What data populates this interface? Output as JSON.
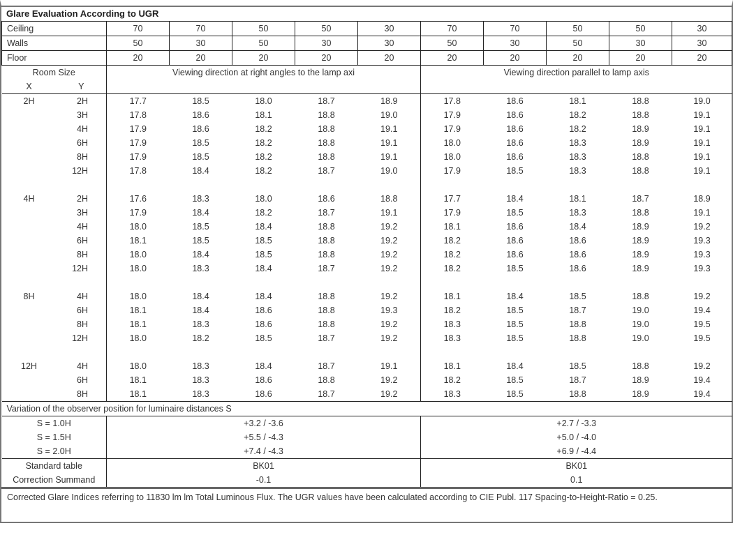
{
  "title": "Glare Evaluation According to UGR",
  "reflectances": [
    {
      "label": "Ceiling",
      "values": [
        "70",
        "70",
        "50",
        "50",
        "30",
        "70",
        "70",
        "50",
        "50",
        "30"
      ]
    },
    {
      "label": "Walls",
      "values": [
        "50",
        "30",
        "50",
        "30",
        "30",
        "50",
        "30",
        "50",
        "30",
        "30"
      ]
    },
    {
      "label": "Floor",
      "values": [
        "20",
        "20",
        "20",
        "20",
        "20",
        "20",
        "20",
        "20",
        "20",
        "20"
      ]
    }
  ],
  "header": {
    "room_size": "Room Size",
    "x": "X",
    "y": "Y",
    "perpendicular": "Viewing direction at right angles to the lamp axi",
    "parallel": "Viewing direction parallel to lamp axis"
  },
  "groups": [
    {
      "x": "2H",
      "rows": [
        {
          "y": "2H",
          "values": [
            "17.7",
            "18.5",
            "18.0",
            "18.7",
            "18.9",
            "17.8",
            "18.6",
            "18.1",
            "18.8",
            "19.0"
          ]
        },
        {
          "y": "3H",
          "values": [
            "17.8",
            "18.6",
            "18.1",
            "18.8",
            "19.0",
            "17.9",
            "18.6",
            "18.2",
            "18.8",
            "19.1"
          ]
        },
        {
          "y": "4H",
          "values": [
            "17.9",
            "18.6",
            "18.2",
            "18.8",
            "19.1",
            "17.9",
            "18.6",
            "18.2",
            "18.9",
            "19.1"
          ]
        },
        {
          "y": "6H",
          "values": [
            "17.9",
            "18.5",
            "18.2",
            "18.8",
            "19.1",
            "18.0",
            "18.6",
            "18.3",
            "18.9",
            "19.1"
          ]
        },
        {
          "y": "8H",
          "values": [
            "17.9",
            "18.5",
            "18.2",
            "18.8",
            "19.1",
            "18.0",
            "18.6",
            "18.3",
            "18.8",
            "19.1"
          ]
        },
        {
          "y": "12H",
          "values": [
            "17.8",
            "18.4",
            "18.2",
            "18.7",
            "19.0",
            "17.9",
            "18.5",
            "18.3",
            "18.8",
            "19.1"
          ]
        }
      ]
    },
    {
      "x": "4H",
      "rows": [
        {
          "y": "2H",
          "values": [
            "17.6",
            "18.3",
            "18.0",
            "18.6",
            "18.8",
            "17.7",
            "18.4",
            "18.1",
            "18.7",
            "18.9"
          ]
        },
        {
          "y": "3H",
          "values": [
            "17.9",
            "18.4",
            "18.2",
            "18.7",
            "19.1",
            "17.9",
            "18.5",
            "18.3",
            "18.8",
            "19.1"
          ]
        },
        {
          "y": "4H",
          "values": [
            "18.0",
            "18.5",
            "18.4",
            "18.8",
            "19.2",
            "18.1",
            "18.6",
            "18.4",
            "18.9",
            "19.2"
          ]
        },
        {
          "y": "6H",
          "values": [
            "18.1",
            "18.5",
            "18.5",
            "18.8",
            "19.2",
            "18.2",
            "18.6",
            "18.6",
            "18.9",
            "19.3"
          ]
        },
        {
          "y": "8H",
          "values": [
            "18.0",
            "18.4",
            "18.5",
            "18.8",
            "19.2",
            "18.2",
            "18.6",
            "18.6",
            "18.9",
            "19.3"
          ]
        },
        {
          "y": "12H",
          "values": [
            "18.0",
            "18.3",
            "18.4",
            "18.7",
            "19.2",
            "18.2",
            "18.5",
            "18.6",
            "18.9",
            "19.3"
          ]
        }
      ]
    },
    {
      "x": "8H",
      "rows": [
        {
          "y": "4H",
          "values": [
            "18.0",
            "18.4",
            "18.4",
            "18.8",
            "19.2",
            "18.1",
            "18.4",
            "18.5",
            "18.8",
            "19.2"
          ]
        },
        {
          "y": "6H",
          "values": [
            "18.1",
            "18.4",
            "18.6",
            "18.8",
            "19.3",
            "18.2",
            "18.5",
            "18.7",
            "19.0",
            "19.4"
          ]
        },
        {
          "y": "8H",
          "values": [
            "18.1",
            "18.3",
            "18.6",
            "18.8",
            "19.2",
            "18.3",
            "18.5",
            "18.8",
            "19.0",
            "19.5"
          ]
        },
        {
          "y": "12H",
          "values": [
            "18.0",
            "18.2",
            "18.5",
            "18.7",
            "19.2",
            "18.3",
            "18.5",
            "18.8",
            "19.0",
            "19.5"
          ]
        }
      ]
    },
    {
      "x": "12H",
      "rows": [
        {
          "y": "4H",
          "values": [
            "18.0",
            "18.3",
            "18.4",
            "18.7",
            "19.1",
            "18.1",
            "18.4",
            "18.5",
            "18.8",
            "19.2"
          ]
        },
        {
          "y": "6H",
          "values": [
            "18.1",
            "18.3",
            "18.6",
            "18.8",
            "19.2",
            "18.2",
            "18.5",
            "18.7",
            "18.9",
            "19.4"
          ]
        },
        {
          "y": "8H",
          "values": [
            "18.1",
            "18.3",
            "18.6",
            "18.7",
            "19.2",
            "18.3",
            "18.5",
            "18.8",
            "18.9",
            "19.4"
          ]
        }
      ]
    }
  ],
  "variation": {
    "heading": "Variation of the observer position for luminaire distances S",
    "rows": [
      {
        "label": "S = 1.0H",
        "perpendicular": "+3.2 / -3.6",
        "parallel": "+2.7 / -3.3"
      },
      {
        "label": "S = 1.5H",
        "perpendicular": "+5.5 / -4.3",
        "parallel": "+5.0 / -4.0"
      },
      {
        "label": "S = 2.0H",
        "perpendicular": "+7.4 / -4.3",
        "parallel": "+6.9 / -4.4"
      }
    ]
  },
  "standard": [
    {
      "label": "Standard table",
      "perpendicular": "BK01",
      "parallel": "BK01"
    },
    {
      "label": "Correction Summand",
      "perpendicular": "-0.1",
      "parallel": "0.1"
    }
  ],
  "footer": "Corrected Glare Indices referring to 11830 lm lm Total Luminous Flux. The UGR values have been calculated according to CIE Publ. 117    Spacing-to-Height-Ratio = 0.25."
}
